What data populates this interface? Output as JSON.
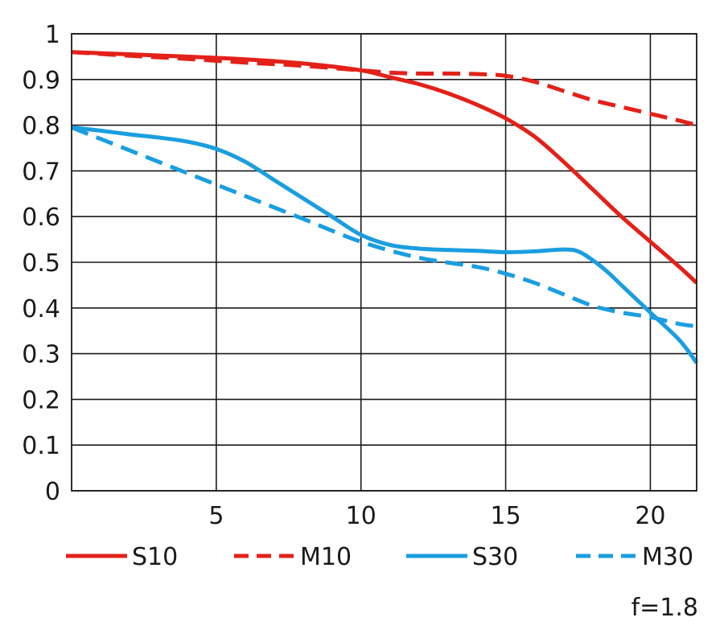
{
  "chart_data": {
    "type": "line",
    "xlim": [
      0,
      21.6
    ],
    "ylim": [
      0,
      1
    ],
    "xticks": [
      5,
      10,
      15,
      20
    ],
    "yticks": [
      0,
      0.1,
      0.2,
      0.3,
      0.4,
      0.5,
      0.6,
      0.7,
      0.8,
      0.9,
      1
    ],
    "xtick_labels": [
      "5",
      "10",
      "15",
      "20"
    ],
    "ytick_labels": [
      "0",
      "0.1",
      "0.2",
      "0.3",
      "0.4",
      "0.5",
      "0.6",
      "0.7",
      "0.8",
      "0.9",
      "1"
    ],
    "grid": true,
    "legend": "bottom",
    "annotation": "f=1.8",
    "series": [
      {
        "name": "S10",
        "color": "#e32119",
        "dash": false,
        "x": [
          0,
          2,
          4,
          6,
          8,
          10,
          11,
          12,
          13,
          14,
          15,
          16,
          17,
          18,
          19,
          20,
          21,
          21.6
        ],
        "y": [
          0.96,
          0.955,
          0.95,
          0.944,
          0.935,
          0.92,
          0.905,
          0.89,
          0.87,
          0.845,
          0.815,
          0.775,
          0.72,
          0.66,
          0.6,
          0.545,
          0.49,
          0.455
        ]
      },
      {
        "name": "M10",
        "color": "#e32119",
        "dash": true,
        "x": [
          0,
          2,
          4,
          6,
          8,
          10,
          11,
          12,
          13,
          14,
          15,
          16,
          17,
          18,
          19,
          20,
          21,
          21.6
        ],
        "y": [
          0.96,
          0.952,
          0.945,
          0.937,
          0.93,
          0.92,
          0.915,
          0.913,
          0.913,
          0.912,
          0.908,
          0.895,
          0.875,
          0.855,
          0.84,
          0.825,
          0.81,
          0.8
        ]
      },
      {
        "name": "S30",
        "color": "#1a9ee0",
        "dash": false,
        "x": [
          0,
          1,
          2,
          3,
          4,
          5,
          6,
          7,
          8,
          9,
          10,
          11,
          12,
          13,
          14,
          15,
          16,
          17,
          17.5,
          18,
          18.5,
          19,
          20,
          21,
          21.6
        ],
        "y": [
          0.795,
          0.788,
          0.78,
          0.773,
          0.764,
          0.748,
          0.72,
          0.68,
          0.64,
          0.6,
          0.56,
          0.538,
          0.53,
          0.527,
          0.525,
          0.522,
          0.524,
          0.528,
          0.524,
          0.505,
          0.48,
          0.45,
          0.39,
          0.33,
          0.28
        ]
      },
      {
        "name": "M30",
        "color": "#1a9ee0",
        "dash": true,
        "x": [
          0,
          2,
          4,
          6,
          8,
          10,
          12,
          14,
          15,
          16,
          17,
          18,
          19,
          20,
          21,
          21.6
        ],
        "y": [
          0.795,
          0.745,
          0.695,
          0.645,
          0.595,
          0.545,
          0.51,
          0.49,
          0.475,
          0.455,
          0.43,
          0.405,
          0.39,
          0.38,
          0.365,
          0.36
        ]
      }
    ]
  }
}
